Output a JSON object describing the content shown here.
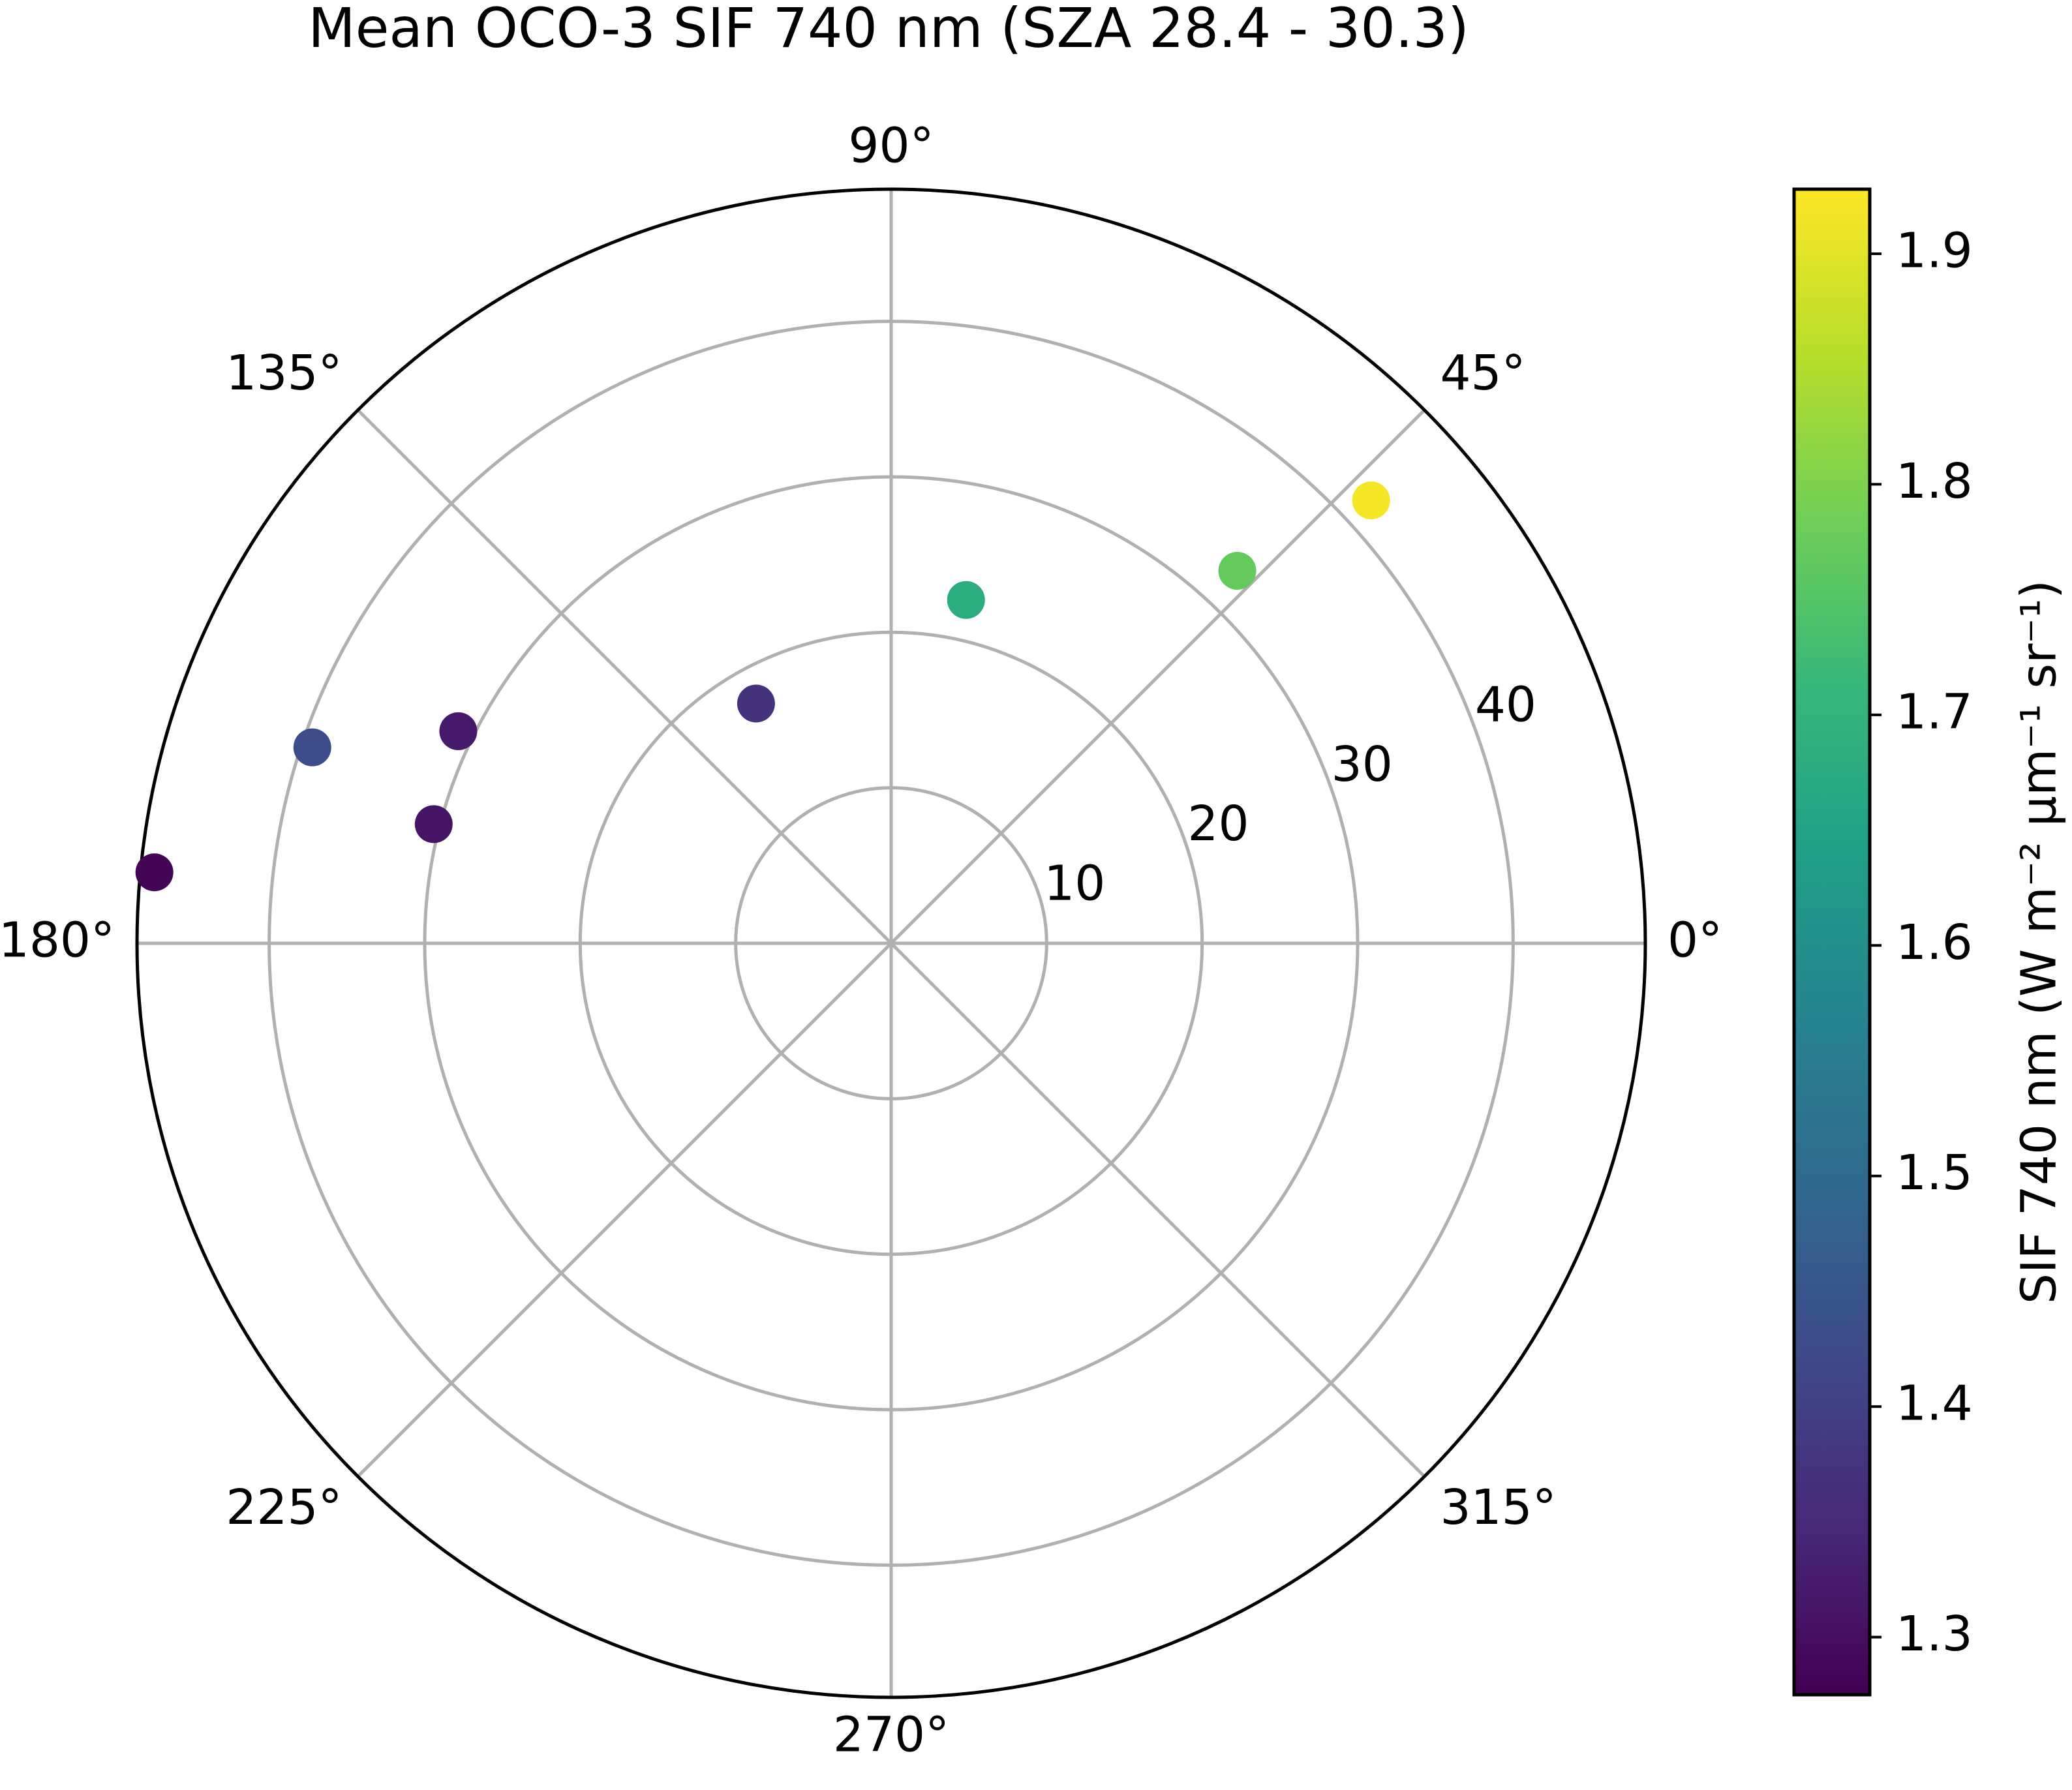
{
  "chart_data": {
    "type": "scatter",
    "projection": "polar",
    "title": "Mean OCO-3 SIF 740 nm (SZA 28.4 - 30.3)",
    "angular_ticks": [
      {
        "deg": 0,
        "label": "0°"
      },
      {
        "deg": 45,
        "label": "45°"
      },
      {
        "deg": 90,
        "label": "90°"
      },
      {
        "deg": 135,
        "label": "135°"
      },
      {
        "deg": 180,
        "label": "180°"
      },
      {
        "deg": 225,
        "label": "225°"
      },
      {
        "deg": 270,
        "label": "270°"
      },
      {
        "deg": 315,
        "label": "315°"
      }
    ],
    "radial_ticks": [
      {
        "r": 10,
        "label": "10"
      },
      {
        "r": 20,
        "label": "20"
      },
      {
        "r": 30,
        "label": "30"
      },
      {
        "r": 40,
        "label": "40"
      }
    ],
    "rlim": [
      0,
      48.5
    ],
    "grid": true,
    "points": [
      {
        "theta_deg": 42.7,
        "r": 42.0,
        "value": 1.92
      },
      {
        "theta_deg": 47.1,
        "r": 32.7,
        "value": 1.77
      },
      {
        "theta_deg": 77.7,
        "r": 22.6,
        "value": 1.68
      },
      {
        "theta_deg": 119.4,
        "r": 17.7,
        "value": 1.37
      },
      {
        "theta_deg": 153.9,
        "r": 31.0,
        "value": 1.32
      },
      {
        "theta_deg": 161.3,
        "r": 39.3,
        "value": 1.43
      },
      {
        "theta_deg": 165.4,
        "r": 30.4,
        "value": 1.31
      },
      {
        "theta_deg": 174.5,
        "r": 47.6,
        "value": 1.28
      }
    ],
    "colorbar": {
      "colormap": "viridis",
      "vmin": 1.275,
      "vmax": 1.928,
      "ticks": [
        {
          "value": 1.3,
          "label": "1.3"
        },
        {
          "value": 1.4,
          "label": "1.4"
        },
        {
          "value": 1.5,
          "label": "1.5"
        },
        {
          "value": 1.6,
          "label": "1.6"
        },
        {
          "value": 1.7,
          "label": "1.7"
        },
        {
          "value": 1.8,
          "label": "1.8"
        },
        {
          "value": 1.9,
          "label": "1.9"
        }
      ],
      "label": "SIF 740 nm (W m⁻² µm⁻¹ sr⁻¹)",
      "placement": "right"
    },
    "colors": {
      "grid": "#b0b0b0",
      "frame": "#000000",
      "viridis_stops": [
        "#440154",
        "#482878",
        "#3e4989",
        "#31688e",
        "#26828e",
        "#1f9e89",
        "#35b779",
        "#6ece58",
        "#b5de2b",
        "#fde725"
      ]
    }
  }
}
